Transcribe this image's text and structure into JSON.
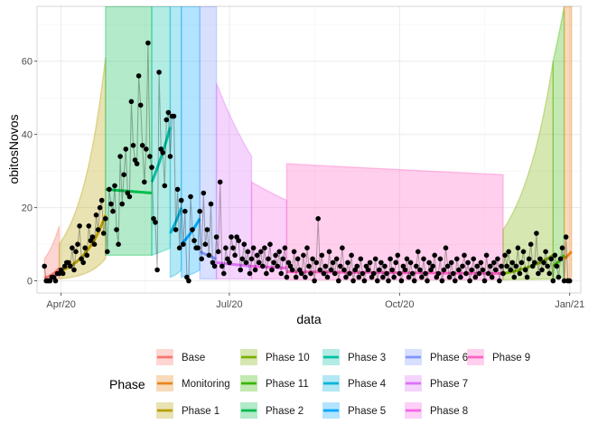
{
  "chart_data": {
    "type": "scatter",
    "xlabel": "data",
    "ylabel": "obitosNovos",
    "x_ticks": [
      {
        "label": "Apr/20",
        "day": 9
      },
      {
        "label": "Jul/20",
        "day": 100
      },
      {
        "label": "Oct/20",
        "day": 192
      },
      {
        "label": "Jan/21",
        "day": 284
      }
    ],
    "y_ticks": [
      0,
      20,
      40,
      60
    ],
    "xlim_days": [
      -4,
      290
    ],
    "ylim": [
      -3.3,
      75
    ],
    "x_origin_date": "2020-03-23",
    "grid": true,
    "legend": {
      "title": "Phase",
      "position": "bottom",
      "entries": [
        {
          "name": "Base",
          "color": "#F8766D"
        },
        {
          "name": "Monitoring",
          "color": "#E7861B"
        },
        {
          "name": "Phase 1",
          "color": "#B79F00"
        },
        {
          "name": "Phase 10",
          "color": "#7CAE00"
        },
        {
          "name": "Phase 11",
          "color": "#39B600"
        },
        {
          "name": "Phase 2",
          "color": "#00BB4E"
        },
        {
          "name": "Phase 3",
          "color": "#00BFA4"
        },
        {
          "name": "Phase 4",
          "color": "#00B4D8"
        },
        {
          "name": "Phase 5",
          "color": "#00A5FF"
        },
        {
          "name": "Phase 6",
          "color": "#7F96FF"
        },
        {
          "name": "Phase 7",
          "color": "#DC71FA"
        },
        {
          "name": "Phase 8",
          "color": "#F564E3"
        },
        {
          "name": "Phase 9",
          "color": "#FF61C3"
        }
      ]
    },
    "phases": [
      {
        "name": "Base",
        "start": 0,
        "end": 8,
        "fit": [
          0.8,
          3.5
        ],
        "lo": [
          0.2,
          0.8
        ],
        "hi": [
          6,
          15
        ]
      },
      {
        "name": "Phase 1",
        "start": 8,
        "end": 33,
        "fit": [
          2.5,
          18
        ],
        "lo": [
          0.5,
          6
        ],
        "hi": [
          10,
          61
        ]
      },
      {
        "name": "Phase 2",
        "start": 33,
        "end": 58,
        "fit": [
          25,
          24
        ],
        "lo": [
          7,
          7
        ],
        "hi": [
          75,
          75
        ]
      },
      {
        "name": "Phase 3",
        "start": 58,
        "end": 68,
        "fit": [
          27,
          42
        ],
        "lo": [
          7,
          9
        ],
        "hi": [
          75,
          75
        ]
      },
      {
        "name": "Phase 4",
        "start": 68,
        "end": 74,
        "fit": [
          13,
          20
        ],
        "lo": [
          1,
          3
        ],
        "hi": [
          75,
          75
        ]
      },
      {
        "name": "Phase 5",
        "start": 74,
        "end": 84,
        "fit": [
          10,
          17
        ],
        "lo": [
          1,
          3
        ],
        "hi": [
          75,
          75
        ]
      },
      {
        "name": "Phase 6",
        "start": 84,
        "end": 93,
        "fit": [
          8,
          6
        ],
        "lo": [
          0.5,
          0.5
        ],
        "hi": [
          75,
          75
        ]
      },
      {
        "name": "Phase 7",
        "start": 93,
        "end": 112,
        "fit": [
          5,
          4
        ],
        "lo": [
          0.5,
          0.5
        ],
        "hi": [
          54,
          34
        ]
      },
      {
        "name": "Phase 8",
        "start": 112,
        "end": 131,
        "fit": [
          4,
          3.5
        ],
        "lo": [
          0.5,
          0.5
        ],
        "hi": [
          27,
          22
        ]
      },
      {
        "name": "Phase 9",
        "start": 131,
        "end": 248,
        "fit": [
          2.5,
          2
        ],
        "lo": [
          0.3,
          0.3
        ],
        "hi": [
          32,
          29
        ]
      },
      {
        "name": "Phase 10",
        "start": 248,
        "end": 275,
        "fit": [
          2,
          7
        ],
        "lo": [
          0.3,
          0.5
        ],
        "hi": [
          14,
          60
        ]
      },
      {
        "name": "Phase 11",
        "start": 275,
        "end": 281,
        "fit": [
          4,
          7
        ],
        "lo": [
          0.5,
          1
        ],
        "hi": [
          60,
          75
        ]
      },
      {
        "name": "Monitoring",
        "start": 281,
        "end": 285,
        "fit": [
          6,
          8
        ],
        "lo": [
          0.5,
          1
        ],
        "hi": [
          75,
          75
        ]
      }
    ],
    "points": [
      [
        0,
        4
      ],
      [
        1,
        0
      ],
      [
        2,
        0
      ],
      [
        3,
        0
      ],
      [
        4,
        1
      ],
      [
        5,
        1
      ],
      [
        6,
        0
      ],
      [
        7,
        2
      ],
      [
        8,
        2
      ],
      [
        9,
        3
      ],
      [
        10,
        2
      ],
      [
        11,
        4
      ],
      [
        12,
        5
      ],
      [
        13,
        5
      ],
      [
        14,
        4
      ],
      [
        15,
        9
      ],
      [
        16,
        3
      ],
      [
        17,
        8
      ],
      [
        18,
        10
      ],
      [
        19,
        15
      ],
      [
        20,
        6
      ],
      [
        21,
        5
      ],
      [
        22,
        9
      ],
      [
        23,
        7
      ],
      [
        24,
        15
      ],
      [
        25,
        11
      ],
      [
        26,
        12
      ],
      [
        27,
        10
      ],
      [
        28,
        18
      ],
      [
        29,
        14
      ],
      [
        30,
        20
      ],
      [
        31,
        22
      ],
      [
        32,
        13
      ],
      [
        33,
        17
      ],
      [
        34,
        8
      ],
      [
        35,
        25
      ],
      [
        36,
        21
      ],
      [
        37,
        19
      ],
      [
        38,
        26
      ],
      [
        39,
        14
      ],
      [
        40,
        10
      ],
      [
        41,
        34
      ],
      [
        42,
        21
      ],
      [
        43,
        29
      ],
      [
        44,
        36
      ],
      [
        45,
        24
      ],
      [
        46,
        23
      ],
      [
        47,
        49
      ],
      [
        48,
        37
      ],
      [
        49,
        33
      ],
      [
        50,
        32
      ],
      [
        51,
        56
      ],
      [
        52,
        48
      ],
      [
        53,
        37
      ],
      [
        54,
        27
      ],
      [
        55,
        36
      ],
      [
        56,
        65
      ],
      [
        57,
        34
      ],
      [
        58,
        31
      ],
      [
        59,
        17
      ],
      [
        60,
        16
      ],
      [
        61,
        3
      ],
      [
        62,
        57
      ],
      [
        63,
        36
      ],
      [
        64,
        35
      ],
      [
        65,
        26
      ],
      [
        66,
        44
      ],
      [
        67,
        46
      ],
      [
        68,
        34
      ],
      [
        69,
        45
      ],
      [
        70,
        45
      ],
      [
        71,
        14
      ],
      [
        72,
        25
      ],
      [
        73,
        9
      ],
      [
        74,
        22
      ],
      [
        75,
        10
      ],
      [
        76,
        19
      ],
      [
        77,
        1
      ],
      [
        78,
        0
      ],
      [
        79,
        23
      ],
      [
        80,
        14
      ],
      [
        81,
        11
      ],
      [
        82,
        9
      ],
      [
        83,
        9
      ],
      [
        84,
        19
      ],
      [
        85,
        6
      ],
      [
        86,
        24
      ],
      [
        87,
        10
      ],
      [
        88,
        14
      ],
      [
        89,
        7
      ],
      [
        90,
        21
      ],
      [
        91,
        5
      ],
      [
        92,
        4
      ],
      [
        93,
        12
      ],
      [
        94,
        8
      ],
      [
        95,
        27
      ],
      [
        96,
        4
      ],
      [
        97,
        2
      ],
      [
        98,
        9
      ],
      [
        99,
        6
      ],
      [
        100,
        5
      ],
      [
        101,
        12
      ],
      [
        102,
        9
      ],
      [
        103,
        7
      ],
      [
        104,
        12
      ],
      [
        105,
        11
      ],
      [
        106,
        3
      ],
      [
        107,
        6
      ],
      [
        108,
        10
      ],
      [
        109,
        5
      ],
      [
        110,
        8
      ],
      [
        111,
        2
      ],
      [
        112,
        6
      ],
      [
        113,
        9
      ],
      [
        114,
        3
      ],
      [
        115,
        7
      ],
      [
        116,
        5
      ],
      [
        117,
        8
      ],
      [
        118,
        4
      ],
      [
        119,
        9
      ],
      [
        120,
        2
      ],
      [
        121,
        6
      ],
      [
        122,
        10
      ],
      [
        123,
        3
      ],
      [
        124,
        5
      ],
      [
        125,
        7
      ],
      [
        126,
        4
      ],
      [
        127,
        8
      ],
      [
        128,
        2
      ],
      [
        129,
        6
      ],
      [
        130,
        9
      ],
      [
        131,
        1
      ],
      [
        132,
        5
      ],
      [
        133,
        4
      ],
      [
        134,
        3
      ],
      [
        135,
        8
      ],
      [
        136,
        1
      ],
      [
        137,
        6
      ],
      [
        138,
        3
      ],
      [
        139,
        2
      ],
      [
        140,
        7
      ],
      [
        141,
        1
      ],
      [
        142,
        9
      ],
      [
        143,
        4
      ],
      [
        144,
        2
      ],
      [
        145,
        6
      ],
      [
        146,
        0
      ],
      [
        147,
        5
      ],
      [
        148,
        17
      ],
      [
        149,
        3
      ],
      [
        150,
        7
      ],
      [
        151,
        2
      ],
      [
        152,
        4
      ],
      [
        153,
        1
      ],
      [
        154,
        8
      ],
      [
        155,
        3
      ],
      [
        156,
        5
      ],
      [
        157,
        2
      ],
      [
        158,
        6
      ],
      [
        159,
        0
      ],
      [
        160,
        4
      ],
      [
        161,
        9
      ],
      [
        162,
        3
      ],
      [
        163,
        1
      ],
      [
        164,
        5
      ],
      [
        165,
        2
      ],
      [
        166,
        7
      ],
      [
        167,
        0
      ],
      [
        168,
        3
      ],
      [
        169,
        4
      ],
      [
        170,
        1
      ],
      [
        171,
        6
      ],
      [
        172,
        2
      ],
      [
        173,
        0
      ],
      [
        174,
        4
      ],
      [
        175,
        3
      ],
      [
        176,
        5
      ],
      [
        177,
        1
      ],
      [
        178,
        2
      ],
      [
        179,
        6
      ],
      [
        180,
        0
      ],
      [
        181,
        3
      ],
      [
        182,
        5
      ],
      [
        183,
        1
      ],
      [
        184,
        4
      ],
      [
        185,
        2
      ],
      [
        186,
        0
      ],
      [
        187,
        6
      ],
      [
        188,
        3
      ],
      [
        189,
        1
      ],
      [
        190,
        5
      ],
      [
        191,
        7
      ],
      [
        192,
        2
      ],
      [
        193,
        0
      ],
      [
        194,
        4
      ],
      [
        195,
        3
      ],
      [
        196,
        6
      ],
      [
        197,
        1
      ],
      [
        198,
        5
      ],
      [
        199,
        2
      ],
      [
        200,
        0
      ],
      [
        201,
        4
      ],
      [
        202,
        8
      ],
      [
        203,
        3
      ],
      [
        204,
        1
      ],
      [
        205,
        6
      ],
      [
        206,
        2
      ],
      [
        207,
        0
      ],
      [
        208,
        5
      ],
      [
        209,
        3
      ],
      [
        210,
        4
      ],
      [
        211,
        7
      ],
      [
        212,
        1
      ],
      [
        213,
        2
      ],
      [
        214,
        6
      ],
      [
        215,
        0
      ],
      [
        216,
        3
      ],
      [
        217,
        9
      ],
      [
        218,
        4
      ],
      [
        219,
        1
      ],
      [
        220,
        5
      ],
      [
        221,
        2
      ],
      [
        222,
        0
      ],
      [
        223,
        6
      ],
      [
        224,
        3
      ],
      [
        225,
        1
      ],
      [
        226,
        4
      ],
      [
        227,
        7
      ],
      [
        228,
        2
      ],
      [
        229,
        5
      ],
      [
        230,
        0
      ],
      [
        231,
        3
      ],
      [
        232,
        6
      ],
      [
        233,
        1
      ],
      [
        234,
        4
      ],
      [
        235,
        2
      ],
      [
        236,
        5
      ],
      [
        237,
        3
      ],
      [
        238,
        0
      ],
      [
        239,
        7
      ],
      [
        240,
        2
      ],
      [
        241,
        4
      ],
      [
        242,
        1
      ],
      [
        243,
        5
      ],
      [
        244,
        3
      ],
      [
        245,
        6
      ],
      [
        246,
        0
      ],
      [
        247,
        4
      ],
      [
        248,
        2
      ],
      [
        249,
        7
      ],
      [
        250,
        4
      ],
      [
        251,
        8
      ],
      [
        252,
        3
      ],
      [
        253,
        5
      ],
      [
        254,
        1
      ],
      [
        255,
        4
      ],
      [
        256,
        9
      ],
      [
        257,
        2
      ],
      [
        258,
        5
      ],
      [
        259,
        8
      ],
      [
        260,
        3
      ],
      [
        261,
        1
      ],
      [
        262,
        6
      ],
      [
        263,
        10
      ],
      [
        264,
        4
      ],
      [
        265,
        5
      ],
      [
        266,
        13
      ],
      [
        267,
        2
      ],
      [
        268,
        6
      ],
      [
        269,
        3
      ],
      [
        270,
        5
      ],
      [
        271,
        8
      ],
      [
        272,
        4
      ],
      [
        273,
        2
      ],
      [
        274,
        6
      ],
      [
        275,
        0
      ],
      [
        276,
        7
      ],
      [
        277,
        4
      ],
      [
        278,
        1
      ],
      [
        279,
        6
      ],
      [
        280,
        9
      ],
      [
        281,
        0
      ],
      [
        282,
        12
      ],
      [
        283,
        0
      ],
      [
        284,
        0
      ]
    ]
  }
}
